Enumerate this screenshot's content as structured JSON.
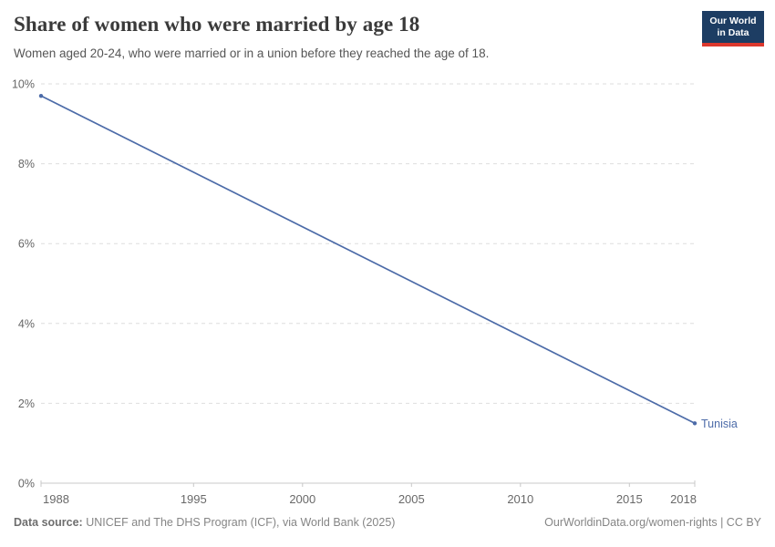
{
  "header": {
    "title": "Share of women who were married by age 18",
    "subtitle": "Women aged 20-24, who were married or in a union before they reached the age of 18."
  },
  "logo": {
    "line1": "Our World",
    "line2": "in Data",
    "bg_color": "#1d3d63",
    "accent_color": "#dc382d"
  },
  "footer": {
    "source_label": "Data source:",
    "source_text": " UNICEF and The DHS Program (ICF), via World Bank (2025)",
    "rights": "OurWorldinData.org/women-rights | CC BY"
  },
  "chart_data": {
    "type": "line",
    "title": "Share of women who were married by age 18",
    "subtitle": "Women aged 20-24, who were married or in a union before they reached the age of 18.",
    "x": {
      "range": [
        1988,
        2018
      ],
      "ticks": [
        1988,
        1995,
        2000,
        2005,
        2010,
        2015,
        2018
      ]
    },
    "y": {
      "range": [
        0,
        10
      ],
      "ticks": [
        0,
        2,
        4,
        6,
        8,
        10
      ],
      "suffix": "%"
    },
    "grid": "horizontal-dashed",
    "legend_position": "end-of-line",
    "series": [
      {
        "name": "Tunisia",
        "color": "#4c6ba8",
        "points": [
          {
            "x": 1988,
            "y": 9.7
          },
          {
            "x": 2018,
            "y": 1.5
          }
        ]
      }
    ]
  },
  "colors": {
    "gridline": "#dedede",
    "axis": "#c8c8c8",
    "tick_text": "#666666"
  }
}
